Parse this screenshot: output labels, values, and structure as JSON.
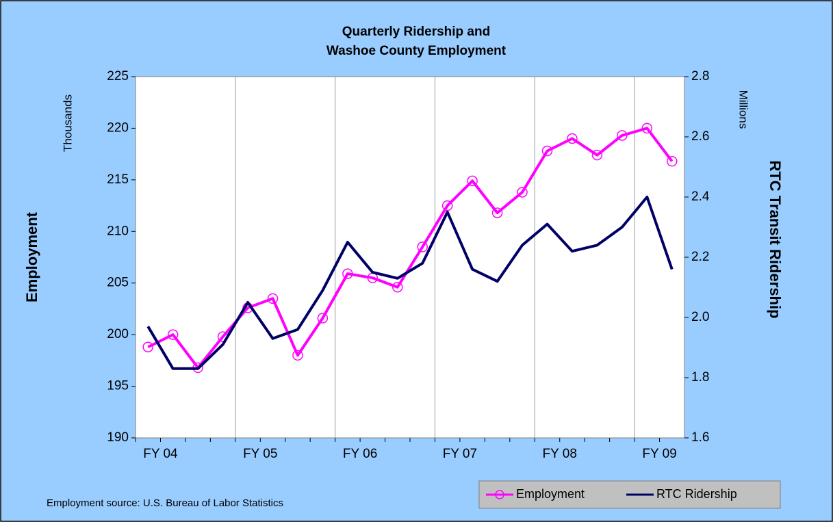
{
  "chart_data": {
    "type": "line",
    "title": [
      "Quarterly Ridership and",
      "Washoe County Employment"
    ],
    "y_label": "Employment",
    "y_unit": "Thousands",
    "y2_label": "RTC Transit Ridership",
    "y2_unit": "Millions",
    "note": "Employment source: U.S. Bureau of Labor Statistics",
    "categories": [
      "FY 04",
      null,
      null,
      null,
      "FY 05",
      null,
      null,
      null,
      "FY 06",
      null,
      null,
      null,
      "FY 07",
      null,
      null,
      null,
      "FY 08",
      null,
      null,
      null,
      "FY 09",
      null
    ],
    "series": [
      {
        "name": "Employment",
        "color": "#ff00ff",
        "marker": "circle",
        "values": [
          198.8,
          200.0,
          196.8,
          199.8,
          202.6,
          203.5,
          198.0,
          201.6,
          205.9,
          205.5,
          204.6,
          208.5,
          212.5,
          214.9,
          211.8,
          213.8,
          217.8,
          219.0,
          217.4,
          219.3,
          220.0,
          216.8
        ]
      },
      {
        "name": "RTC Ridership",
        "color": "#000066",
        "axis": "y2",
        "values": [
          1.97,
          1.83,
          1.83,
          1.91,
          2.05,
          1.93,
          1.96,
          2.09,
          2.25,
          2.15,
          2.13,
          2.18,
          2.35,
          2.16,
          2.12,
          2.24,
          2.31,
          2.22,
          2.24,
          2.3,
          2.4,
          2.16
        ]
      }
    ],
    "ylim": [
      190,
      225
    ],
    "yticks": [
      190,
      195,
      200,
      205,
      210,
      215,
      220,
      225
    ],
    "y2lim": [
      1.6,
      2.8
    ],
    "y2ticks": [
      1.6,
      1.8,
      {
        "value": 2,
        "label": "2.0"
      },
      2.2,
      2.4,
      2.6,
      2.8
    ],
    "xgrid_every": 4,
    "legend": "bottom-right"
  }
}
